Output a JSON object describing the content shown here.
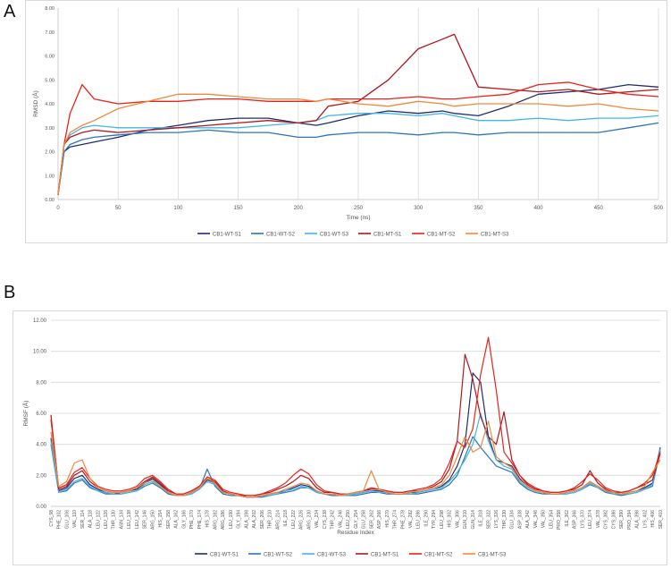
{
  "panels": [
    {
      "letter": "A"
    },
    {
      "letter": "B"
    }
  ],
  "chart_data": [
    {
      "type": "line",
      "xlabel": "Time (ns)",
      "ylabel": "RMSD (Å)",
      "xlim": [
        0,
        500
      ],
      "ylim": [
        0,
        8
      ],
      "xticks": [
        0,
        50,
        100,
        150,
        200,
        250,
        300,
        350,
        400,
        450,
        500
      ],
      "yticks": [
        "0.00",
        "1.00",
        "2.00",
        "3.00",
        "4.00",
        "5.00",
        "6.00",
        "7.00",
        "8.00"
      ],
      "grid": "vertical",
      "legend_position": "bottom",
      "x": [
        0,
        5,
        10,
        20,
        30,
        50,
        75,
        100,
        125,
        150,
        175,
        200,
        215,
        225,
        250,
        275,
        300,
        320,
        330,
        350,
        375,
        400,
        425,
        450,
        475,
        500
      ],
      "series": [
        {
          "name": "CB1-WT-S1",
          "color": "#1f2d6e",
          "values": [
            0.2,
            2.0,
            2.2,
            2.3,
            2.4,
            2.6,
            2.9,
            3.1,
            3.3,
            3.4,
            3.4,
            3.2,
            3.1,
            3.2,
            3.5,
            3.7,
            3.6,
            3.7,
            3.6,
            3.5,
            3.9,
            4.4,
            4.5,
            4.6,
            4.8,
            4.7
          ]
        },
        {
          "name": "CB1-WT-S2",
          "color": "#2e75b6",
          "values": [
            0.2,
            2.0,
            2.3,
            2.5,
            2.6,
            2.7,
            2.8,
            2.8,
            2.9,
            2.8,
            2.8,
            2.6,
            2.6,
            2.7,
            2.8,
            2.8,
            2.7,
            2.8,
            2.8,
            2.7,
            2.8,
            2.8,
            2.8,
            2.8,
            3.0,
            3.2
          ]
        },
        {
          "name": "CB1-WT-S3",
          "color": "#41b6e6",
          "values": [
            0.2,
            2.3,
            2.7,
            3.0,
            3.1,
            3.0,
            3.0,
            3.0,
            3.0,
            3.0,
            3.1,
            3.2,
            3.3,
            3.5,
            3.6,
            3.6,
            3.5,
            3.6,
            3.5,
            3.3,
            3.3,
            3.4,
            3.3,
            3.4,
            3.4,
            3.5
          ]
        },
        {
          "name": "CB1-MT-S1",
          "color": "#b01820",
          "values": [
            0.2,
            2.3,
            2.6,
            2.8,
            2.9,
            2.8,
            2.9,
            3.0,
            3.1,
            3.2,
            3.3,
            3.2,
            3.3,
            3.9,
            4.1,
            5.0,
            6.3,
            6.7,
            6.9,
            4.7,
            4.6,
            4.5,
            4.6,
            4.4,
            4.5,
            4.6
          ]
        },
        {
          "name": "CB1-MT-S2",
          "color": "#e8231b",
          "values": [
            0.2,
            2.3,
            3.6,
            4.8,
            4.2,
            4.0,
            4.1,
            4.1,
            4.2,
            4.2,
            4.1,
            4.1,
            4.1,
            4.2,
            4.2,
            4.2,
            4.3,
            4.2,
            4.2,
            4.3,
            4.4,
            4.8,
            4.9,
            4.6,
            4.4,
            4.3
          ]
        },
        {
          "name": "CB1-MT-S3",
          "color": "#ee8a3c",
          "values": [
            0.2,
            2.3,
            2.8,
            3.1,
            3.3,
            3.8,
            4.1,
            4.4,
            4.4,
            4.3,
            4.2,
            4.2,
            4.1,
            4.2,
            4.0,
            3.9,
            4.1,
            4.0,
            3.9,
            4.0,
            4.0,
            4.0,
            3.9,
            4.0,
            3.8,
            3.7
          ]
        }
      ]
    },
    {
      "type": "line",
      "xlabel": "Residue Index",
      "ylabel": "RMSF (Å)",
      "ylim": [
        0,
        12
      ],
      "yticks": [
        "0.00",
        "2.00",
        "4.00",
        "6.00",
        "8.00",
        "10.00",
        "12.00"
      ],
      "grid": "horizontal",
      "legend_position": "bottom",
      "categories": [
        "CYS_98",
        "PHE_102",
        "GLU_106",
        "VAL_110",
        "SER_114",
        "ALA_118",
        "LEU_122",
        "LEU_126",
        "THR_130",
        "ASN_134",
        "LEU_138",
        "LEU_142",
        "SER_146",
        "ARG_150",
        "HIS_154",
        "SER_158",
        "ALA_162",
        "GLY_166",
        "PHE_170",
        "PHE_174",
        "HIS_178",
        "ARG_182",
        "ARG_186",
        "LEU_190",
        "GLY_194",
        "ALA_198",
        "ALA_202",
        "SER_206",
        "THR_210",
        "ARG_214",
        "ILE_218",
        "LEU_222",
        "ARG_226",
        "ARG_230",
        "VAL_234",
        "CYS_238",
        "THR_242",
        "VAL_246",
        "LEU_250",
        "GLY_254",
        "GLU_258",
        "SER_262",
        "ASP_266",
        "HIS_270",
        "THR_274",
        "PHE_278",
        "VAL_282",
        "LEU_286",
        "ILE_290",
        "TYR_294",
        "LEU_298",
        "HIS_302",
        "VAL_306",
        "GLN_310",
        "GLN_314",
        "ILE_318",
        "SER_322",
        "LYS_326",
        "THR_330",
        "GLU_334",
        "ASP_338",
        "ALA_342",
        "VAL_346",
        "VAL_350",
        "LEU_354",
        "PRO_358",
        "ILE_362",
        "ASP_366",
        "LYS_370",
        "LEU_374",
        "VAL_378",
        "CYS_382",
        "CYS_386",
        "SER_390",
        "PRO_394",
        "ALA_398",
        "LYS_402",
        "HIS_406",
        "SER_410"
      ],
      "series": [
        {
          "name": "CB1-WT-S1",
          "color": "#1f2d6e",
          "values": [
            4.4,
            1.0,
            1.2,
            1.8,
            2.0,
            1.4,
            1.1,
            0.9,
            0.8,
            0.9,
            1.0,
            1.1,
            1.5,
            1.8,
            1.4,
            0.9,
            0.7,
            0.7,
            0.9,
            1.2,
            1.7,
            1.5,
            0.9,
            0.8,
            0.7,
            0.6,
            0.6,
            0.7,
            0.8,
            0.9,
            1.0,
            1.2,
            1.4,
            1.3,
            1.0,
            0.8,
            0.8,
            0.7,
            0.7,
            0.8,
            0.9,
            1.0,
            1.0,
            0.9,
            0.8,
            0.8,
            0.9,
            0.9,
            1.0,
            1.1,
            1.3,
            1.7,
            2.6,
            4.0,
            8.6,
            8.0,
            4.5,
            3.0,
            2.8,
            2.6,
            1.8,
            1.3,
            1.0,
            0.9,
            0.8,
            0.8,
            0.9,
            1.0,
            1.2,
            1.6,
            1.3,
            1.0,
            0.8,
            0.8,
            0.9,
            1.0,
            1.2,
            1.5,
            3.8
          ]
        },
        {
          "name": "CB1-WT-S2",
          "color": "#2e75b6",
          "values": [
            4.0,
            0.9,
            1.0,
            1.5,
            1.7,
            1.2,
            1.0,
            0.8,
            0.8,
            0.8,
            0.9,
            1.0,
            1.3,
            1.5,
            1.2,
            0.8,
            0.7,
            0.7,
            0.8,
            1.1,
            2.4,
            1.3,
            0.8,
            0.7,
            0.7,
            0.6,
            0.6,
            0.6,
            0.7,
            0.8,
            0.9,
            1.0,
            1.2,
            1.2,
            0.9,
            0.8,
            0.7,
            0.7,
            0.7,
            0.7,
            0.8,
            0.9,
            0.9,
            0.8,
            0.8,
            0.8,
            0.8,
            0.8,
            0.9,
            1.0,
            1.1,
            1.4,
            2.0,
            3.2,
            4.5,
            3.8,
            3.2,
            2.6,
            2.4,
            2.2,
            1.5,
            1.1,
            0.9,
            0.8,
            0.8,
            0.8,
            0.8,
            0.9,
            1.1,
            1.4,
            1.2,
            0.9,
            0.8,
            0.7,
            0.8,
            0.9,
            1.1,
            1.3,
            3.6
          ]
        },
        {
          "name": "CB1-WT-S3",
          "color": "#41b6e6",
          "values": [
            4.2,
            0.9,
            1.1,
            1.6,
            1.8,
            1.3,
            1.0,
            0.9,
            0.8,
            0.8,
            0.9,
            1.0,
            1.4,
            1.6,
            1.3,
            0.9,
            0.7,
            0.7,
            0.8,
            1.1,
            1.6,
            1.4,
            0.9,
            0.8,
            0.7,
            0.6,
            0.6,
            0.7,
            0.7,
            0.8,
            1.0,
            1.1,
            1.3,
            1.2,
            0.9,
            0.8,
            0.8,
            0.7,
            0.7,
            0.8,
            0.9,
            1.0,
            0.9,
            0.9,
            0.8,
            0.8,
            0.8,
            0.9,
            1.0,
            1.1,
            1.2,
            1.6,
            2.2,
            3.0,
            4.0,
            6.0,
            4.2,
            3.0,
            2.6,
            2.4,
            1.6,
            1.2,
            1.0,
            0.9,
            0.8,
            0.8,
            0.8,
            0.9,
            1.1,
            1.5,
            1.2,
            1.0,
            0.8,
            0.8,
            0.8,
            0.9,
            1.1,
            1.4,
            3.7
          ]
        },
        {
          "name": "CB1-MT-S1",
          "color": "#b01820",
          "values": [
            5.9,
            1.1,
            1.3,
            2.0,
            2.3,
            1.6,
            1.2,
            1.0,
            0.9,
            0.9,
            1.0,
            1.2,
            1.6,
            1.9,
            1.5,
            1.0,
            0.8,
            0.8,
            1.0,
            1.3,
            1.8,
            1.6,
            1.0,
            0.8,
            0.7,
            0.7,
            0.7,
            0.8,
            0.9,
            1.1,
            1.3,
            1.6,
            2.0,
            1.8,
            1.2,
            0.9,
            0.9,
            0.8,
            0.8,
            0.9,
            1.0,
            1.1,
            1.1,
            1.0,
            0.9,
            0.9,
            1.0,
            1.0,
            1.1,
            1.3,
            1.6,
            2.4,
            4.2,
            9.8,
            8.2,
            5.8,
            4.5,
            4.0,
            6.1,
            3.0,
            2.0,
            1.4,
            1.1,
            1.0,
            0.9,
            0.9,
            1.0,
            1.1,
            1.4,
            2.3,
            1.5,
            1.1,
            0.9,
            0.9,
            1.0,
            1.2,
            1.4,
            1.7,
            3.4
          ]
        },
        {
          "name": "CB1-MT-S2",
          "color": "#e8231b",
          "values": [
            5.6,
            1.2,
            1.4,
            2.2,
            2.5,
            1.8,
            1.3,
            1.1,
            1.0,
            1.0,
            1.1,
            1.3,
            1.8,
            2.0,
            1.6,
            1.1,
            0.8,
            0.8,
            1.0,
            1.3,
            1.9,
            1.7,
            1.1,
            0.9,
            0.8,
            0.7,
            0.7,
            0.8,
            1.0,
            1.2,
            1.5,
            2.0,
            2.4,
            2.1,
            1.4,
            1.0,
            0.9,
            0.8,
            0.8,
            0.9,
            1.0,
            1.2,
            1.1,
            1.0,
            0.9,
            0.9,
            1.0,
            1.1,
            1.2,
            1.4,
            1.8,
            2.8,
            4.2,
            3.8,
            5.0,
            8.5,
            10.9,
            7.5,
            3.5,
            2.8,
            2.0,
            1.5,
            1.2,
            1.0,
            0.9,
            0.9,
            1.0,
            1.2,
            1.6,
            2.1,
            1.7,
            1.2,
            1.0,
            0.9,
            1.0,
            1.2,
            1.5,
            2.0,
            3.5
          ]
        },
        {
          "name": "CB1-MT-S3",
          "color": "#ee8a3c",
          "values": [
            4.8,
            1.3,
            1.6,
            2.8,
            3.0,
            1.8,
            1.2,
            1.0,
            0.9,
            0.9,
            1.0,
            1.2,
            1.5,
            1.7,
            1.3,
            0.9,
            0.7,
            0.7,
            0.9,
            1.2,
            1.8,
            1.5,
            0.9,
            0.8,
            0.7,
            0.6,
            0.6,
            0.7,
            0.8,
            0.9,
            1.1,
            1.3,
            1.5,
            1.4,
            1.0,
            0.8,
            0.8,
            0.7,
            0.8,
            0.9,
            1.0,
            2.3,
            1.1,
            0.9,
            0.8,
            0.8,
            0.9,
            1.0,
            1.1,
            1.2,
            1.4,
            2.0,
            3.2,
            4.5,
            3.5,
            3.8,
            5.5,
            3.2,
            2.8,
            2.5,
            1.7,
            1.3,
            1.0,
            0.9,
            0.8,
            0.8,
            0.9,
            1.0,
            1.2,
            1.6,
            1.3,
            1.0,
            0.9,
            0.8,
            0.9,
            1.0,
            1.3,
            2.2,
            3.0
          ]
        }
      ]
    }
  ]
}
